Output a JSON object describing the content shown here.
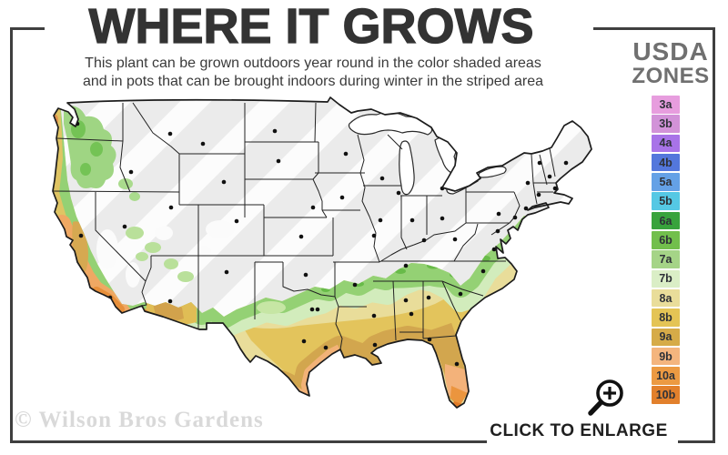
{
  "title": "WHERE IT GROWS",
  "subtitle_line1": "This plant can be grown outdoors year round in the color shaded areas",
  "subtitle_line2": "and in pots that can be brought indoors during winter in the striped area",
  "legend": {
    "title_line1": "USDA",
    "title_line2": "ZONES",
    "zones": [
      {
        "label": "3a",
        "color": "#e79dde"
      },
      {
        "label": "3b",
        "color": "#d292d8"
      },
      {
        "label": "4a",
        "color": "#a873e8"
      },
      {
        "label": "4b",
        "color": "#5377dc"
      },
      {
        "label": "5a",
        "color": "#64a1e6"
      },
      {
        "label": "5b",
        "color": "#55c8e4"
      },
      {
        "label": "6a",
        "color": "#38a33c"
      },
      {
        "label": "6b",
        "color": "#72bf4c"
      },
      {
        "label": "7a",
        "color": "#a5d487"
      },
      {
        "label": "7b",
        "color": "#daeec6"
      },
      {
        "label": "8a",
        "color": "#e9dd9a"
      },
      {
        "label": "8b",
        "color": "#e4c455"
      },
      {
        "label": "9a",
        "color": "#d6ab48"
      },
      {
        "label": "9b",
        "color": "#f4b57e"
      },
      {
        "label": "10a",
        "color": "#ec9a42"
      },
      {
        "label": "10b",
        "color": "#e2802c"
      }
    ]
  },
  "map": {
    "description": "USDA hardiness zone map of the contiguous United States",
    "striped_region": "zones too cold - bring pots indoors during winter",
    "base_color": "#ebebeb",
    "stripe_color": "#ffffff"
  },
  "watermark": "© Wilson Bros Gardens",
  "enlarge": {
    "label": "CLICK TO ENLARGE",
    "icon": "magnifier-plus-icon"
  },
  "colors": {
    "frame": "#3f3f3f",
    "title_text": "#333333"
  }
}
